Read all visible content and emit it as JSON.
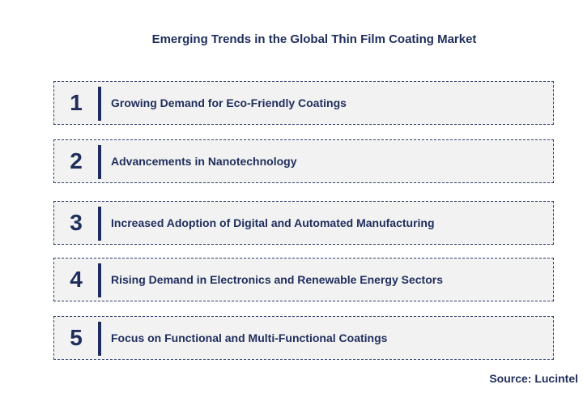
{
  "title": "Emerging Trends in the Global Thin Film Coating Market",
  "items": [
    {
      "number": "1",
      "label": "Growing Demand for Eco-Friendly Coatings"
    },
    {
      "number": "2",
      "label": "Advancements in Nanotechnology"
    },
    {
      "number": "3",
      "label": "Increased Adoption of Digital and Automated Manufacturing"
    },
    {
      "number": "4",
      "label": "Rising Demand in Electronics and Renewable Energy Sectors"
    },
    {
      "number": "5",
      "label": "Focus on Functional and Multi-Functional Coatings"
    }
  ],
  "source": "Source: Lucintel"
}
